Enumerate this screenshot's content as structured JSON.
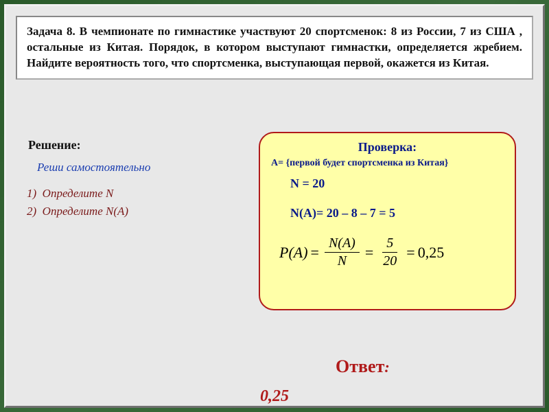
{
  "problem": {
    "text": "Задача 8. В чемпионате по гимнастике участвуют 20 спортсменок: 8 из России, 7 из США , остальные из Китая. Порядок, в котором выступают гимнастки, определяется жребием. Найдите вероятность того, что спортсменка, выступающая первой, окажется из Китая."
  },
  "solution": {
    "label": "Решение:",
    "self_solve": "Реши самостоятельно",
    "step1": "Определите N",
    "step2": "Определите N(A)"
  },
  "verify": {
    "title": "Проверка:",
    "event": "А= {первой будет спортсменка из Китая}",
    "n_line": "N = 20",
    "na_line": "N(A)= 20 – 8 – 7 = 5",
    "formula": {
      "lhs": "P(A)",
      "frac1_num": "N(A)",
      "frac1_den": "N",
      "frac2_num": "5",
      "frac2_den": "20",
      "result": "0,25"
    }
  },
  "answer": {
    "label": "Ответ",
    "colon": ":",
    "value": "0,25"
  },
  "colors": {
    "problem_bg": "#ffffff",
    "verify_bg": "#ffffa8",
    "verify_border": "#b01a1a",
    "verify_text": "#0a1a8a",
    "steps_text": "#7a1a1a",
    "selfsolve_text": "#1a3db0",
    "answer_text": "#b01a1a",
    "frame_bg": "#e8e8e8"
  }
}
